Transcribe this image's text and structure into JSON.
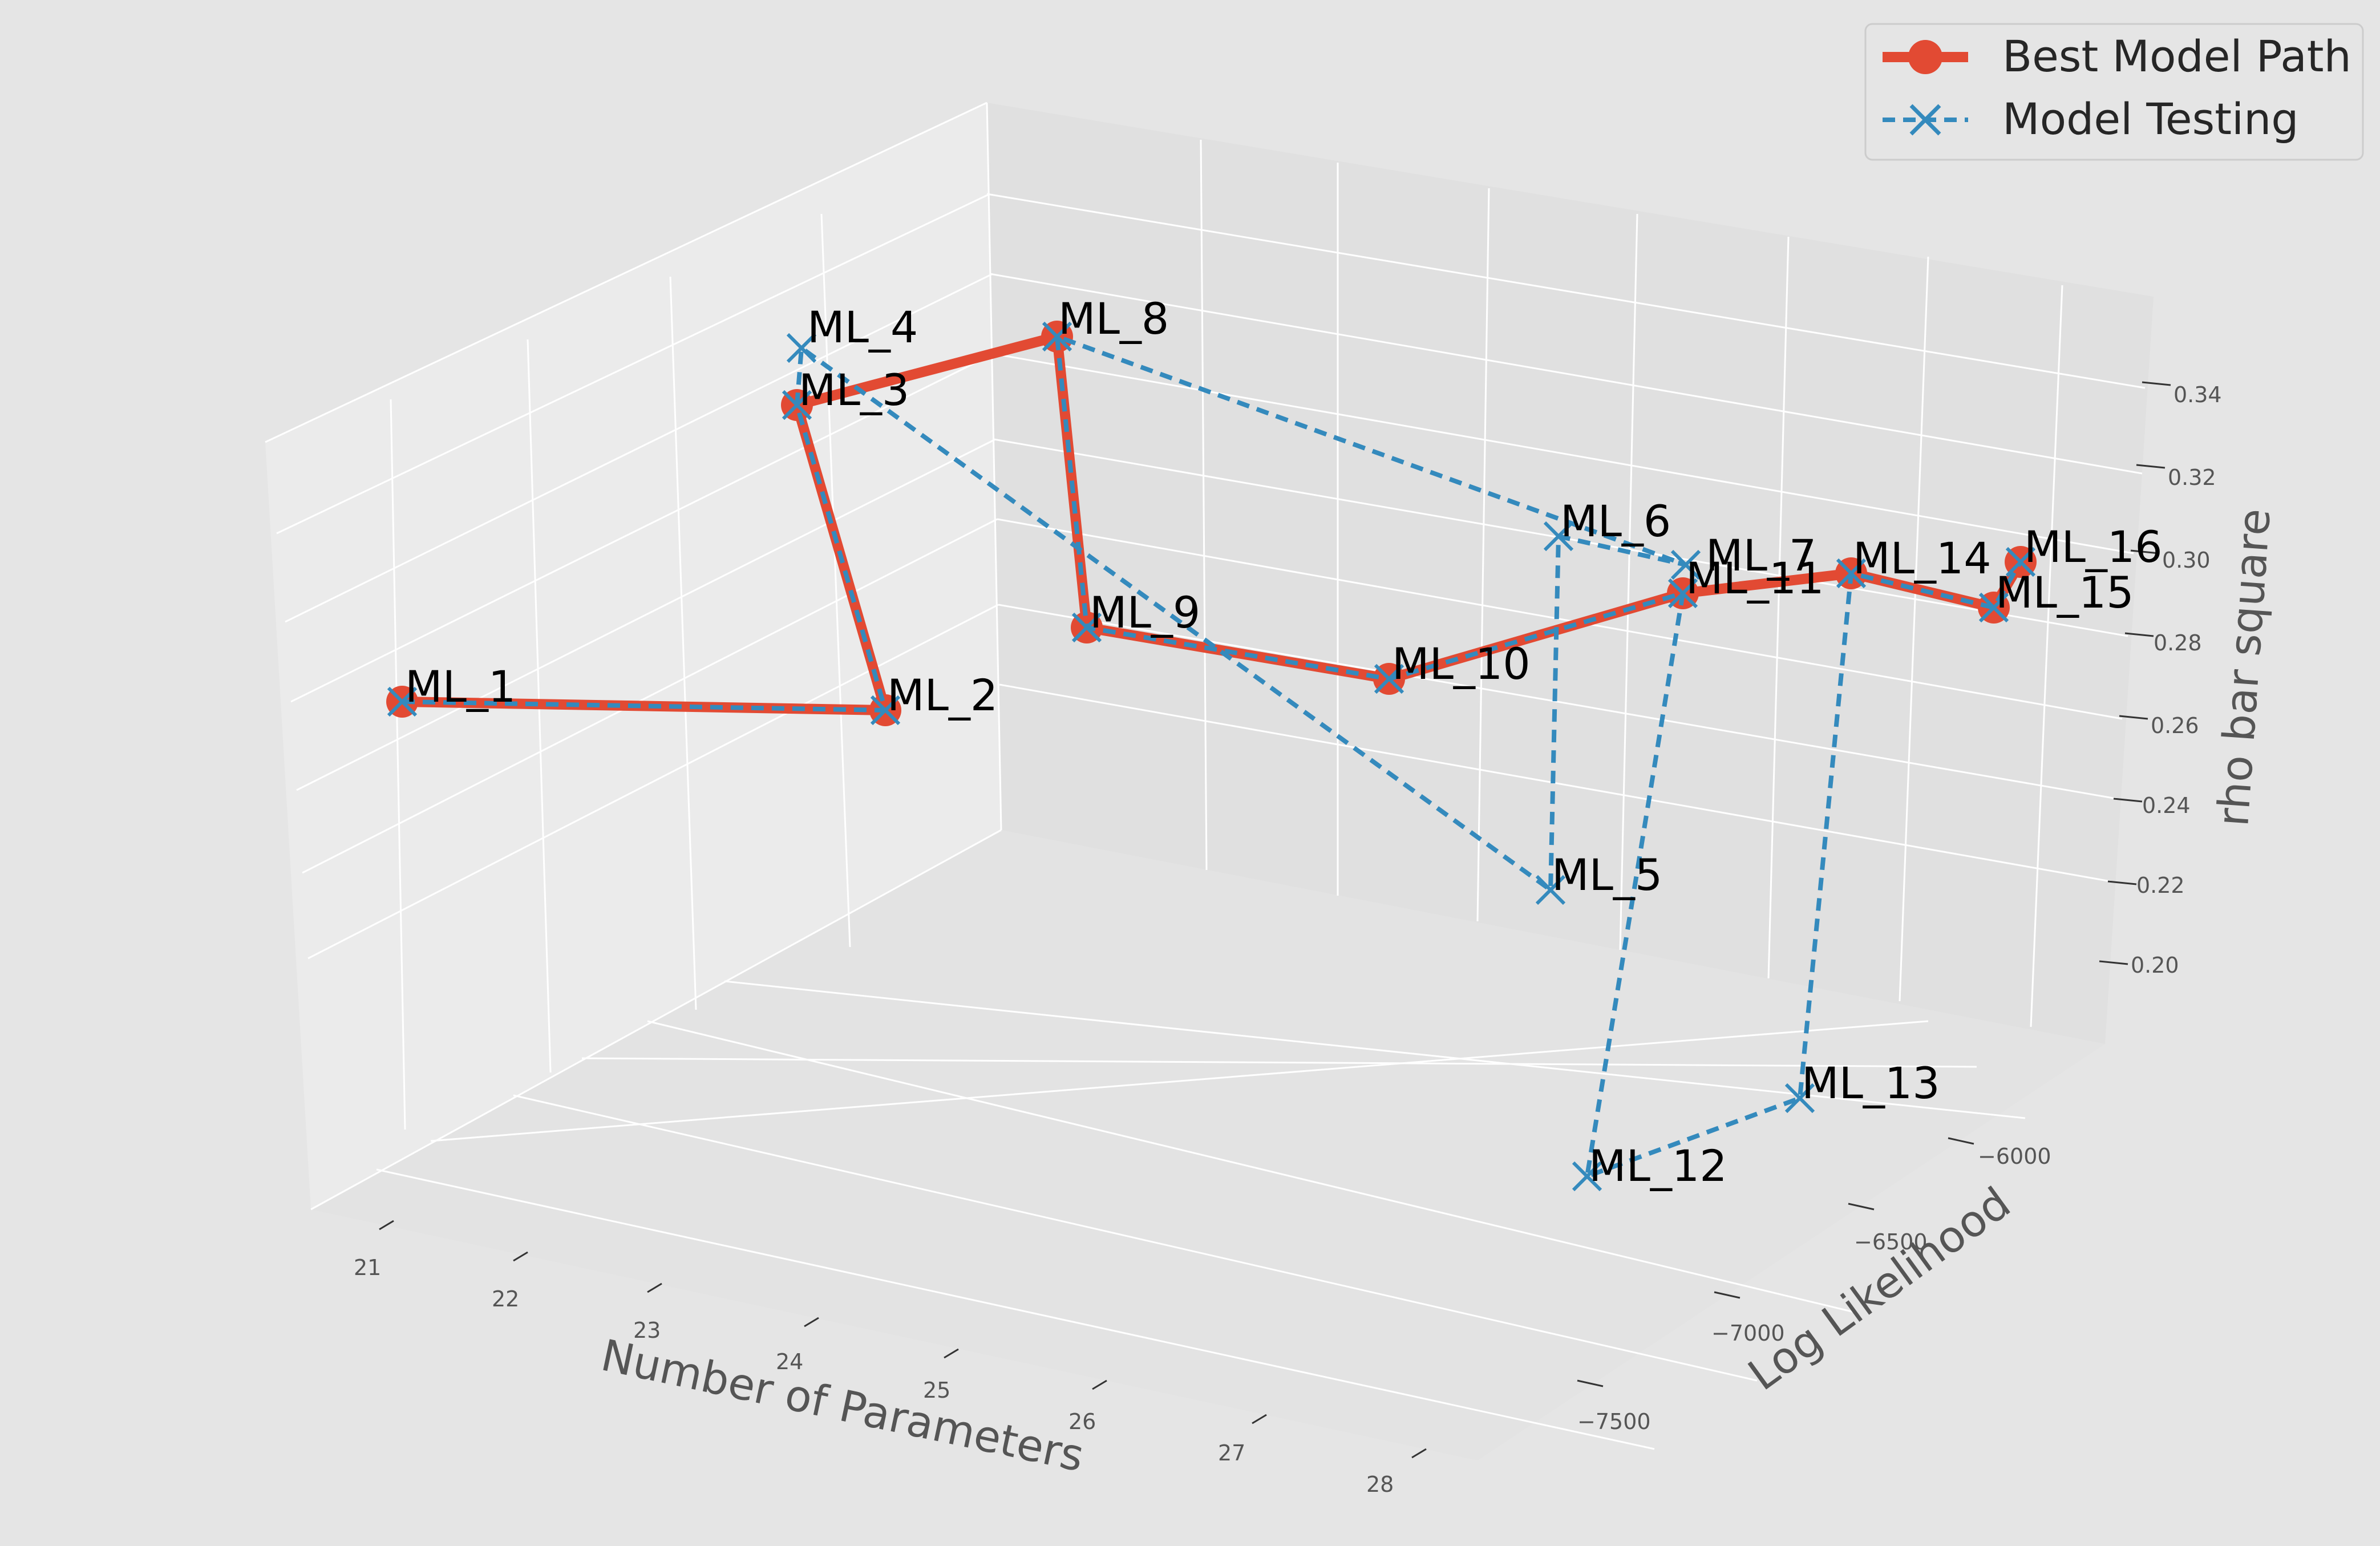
{
  "chart_data": {
    "type": "line",
    "subtype": "3d",
    "title": "",
    "xlabel": "Number of Parameters",
    "ylabel": "Log Likelihood",
    "zlabel": "rho bar square",
    "x_ticks": [
      "21",
      "22",
      "23",
      "24",
      "25",
      "26",
      "27",
      "28"
    ],
    "y_ticks": [
      "−6000",
      "−6500",
      "−7000",
      "−7500"
    ],
    "z_ticks": [
      "0.20",
      "0.22",
      "0.24",
      "0.26",
      "0.28",
      "0.30",
      "0.32",
      "0.34"
    ],
    "legend": {
      "placement": "upper right",
      "items": [
        "Best Model Path",
        "Model Testing"
      ]
    },
    "colors": {
      "best": "#E24A33",
      "testing": "#348ABD"
    },
    "best_model_path": [
      "ML_1",
      "ML_2",
      "ML_3",
      "ML_8",
      "ML_9",
      "ML_10",
      "ML_11",
      "ML_14",
      "ML_15",
      "ML_16"
    ],
    "model_testing_path": [
      "ML_1",
      "ML_2",
      "ML_3",
      "ML_4",
      "ML_5",
      "ML_6",
      "ML_7",
      "ML_8",
      "ML_9",
      "ML_10",
      "ML_11",
      "ML_12",
      "ML_13",
      "ML_14",
      "ML_15",
      "ML_16"
    ],
    "points": {
      "ML_1": {
        "parameters": 21,
        "log_likelihood": -7900,
        "rho_bar_square": 0.255
      },
      "ML_2": {
        "parameters": 22,
        "log_likelihood": -7200,
        "rho_bar_square": 0.27
      },
      "ML_3": {
        "parameters": 22,
        "log_likelihood": -7000,
        "rho_bar_square": 0.33
      },
      "ML_4": {
        "parameters": 22,
        "log_likelihood": -6900,
        "rho_bar_square": 0.34
      },
      "ML_5": {
        "parameters": 23,
        "log_likelihood": -6400,
        "rho_bar_square": 0.22
      },
      "ML_6": {
        "parameters": 23,
        "log_likelihood": -6300,
        "rho_bar_square": 0.29
      },
      "ML_7": {
        "parameters": 24,
        "log_likelihood": -6350,
        "rho_bar_square": 0.29
      },
      "ML_8": {
        "parameters": 23,
        "log_likelihood": -6600,
        "rho_bar_square": 0.335
      },
      "ML_9": {
        "parameters": 24,
        "log_likelihood": -6700,
        "rho_bar_square": 0.29
      },
      "ML_10": {
        "parameters": 25,
        "log_likelihood": -6650,
        "rho_bar_square": 0.285
      },
      "ML_11": {
        "parameters": 26,
        "log_likelihood": -6500,
        "rho_bar_square": 0.29
      },
      "ML_12": {
        "parameters": 27,
        "log_likelihood": -7100,
        "rho_bar_square": 0.215
      },
      "ML_13": {
        "parameters": 27,
        "log_likelihood": -6700,
        "rho_bar_square": 0.205
      },
      "ML_14": {
        "parameters": 27,
        "log_likelihood": -6300,
        "rho_bar_square": 0.29
      },
      "ML_15": {
        "parameters": 28,
        "log_likelihood": -6300,
        "rho_bar_square": 0.28
      },
      "ML_16": {
        "parameters": 28,
        "log_likelihood": -6100,
        "rho_bar_square": 0.29
      }
    }
  }
}
